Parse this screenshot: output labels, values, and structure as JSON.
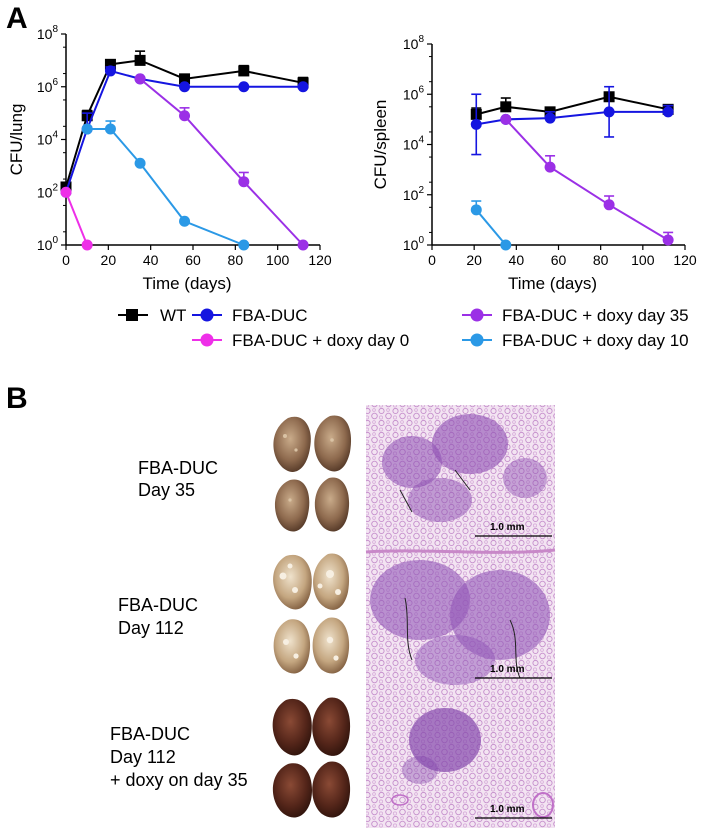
{
  "panel_a": {
    "letter": "A"
  },
  "panel_b": {
    "letter": "B",
    "rows": [
      {
        "lines": [
          "FBA-DUC",
          "Day 35"
        ],
        "scale_text": "1.0 mm"
      },
      {
        "lines": [
          "FBA-DUC",
          "Day 112"
        ],
        "scale_text": "1.0 mm"
      },
      {
        "lines": [
          "FBA-DUC",
          "Day 112",
          "+ doxy on day 35"
        ],
        "scale_text": "1.0 mm"
      }
    ]
  },
  "legend": [
    {
      "name": "WT",
      "color": "#000000",
      "marker": "square"
    },
    {
      "name": "FBA-DUC",
      "color": "#1515e0",
      "marker": "circle"
    },
    {
      "name": "FBA-DUC + doxy day 35",
      "color": "#9b30e6",
      "marker": "circle"
    },
    {
      "name": "FBA-DUC + doxy day 0",
      "color": "#ee2fe8",
      "marker": "circle"
    },
    {
      "name": "FBA-DUC + doxy day 10",
      "color": "#2b99e6",
      "marker": "circle"
    }
  ],
  "chart_data": [
    {
      "type": "line",
      "ylabel": "CFU/lung",
      "xlabel": "Time (days)",
      "xlim": [
        0,
        120
      ],
      "xticks": [
        0,
        20,
        40,
        60,
        80,
        100,
        120
      ],
      "ylim_log10": [
        0,
        8
      ],
      "yscale": "log",
      "yticks_exp": [
        0,
        2,
        4,
        6,
        8
      ],
      "series": [
        {
          "name": "WT",
          "color": "#000000",
          "marker": "square",
          "x": [
            0,
            10,
            21,
            35,
            56,
            84,
            112
          ],
          "log10_y": [
            2.2,
            4.9,
            6.85,
            7.0,
            6.3,
            6.6,
            6.15
          ],
          "err": [
            0,
            0.2,
            0.15,
            0.35,
            0.15,
            0.2,
            0.2
          ]
        },
        {
          "name": "FBA-DUC",
          "color": "#1515e0",
          "marker": "circle",
          "x": [
            0,
            10,
            21,
            35,
            56,
            84,
            112
          ],
          "log10_y": [
            2.0,
            4.4,
            6.6,
            6.3,
            6.0,
            6.0,
            6.0
          ],
          "err": [
            0,
            0.6,
            0.15,
            0,
            0,
            0,
            0
          ]
        },
        {
          "name": "FBA-DUC + doxy day 35",
          "color": "#9b30e6",
          "marker": "circle",
          "x": [
            35,
            56,
            84,
            112
          ],
          "log10_y": [
            6.3,
            4.9,
            2.4,
            0
          ],
          "err": [
            0,
            0.3,
            0.35,
            0
          ]
        },
        {
          "name": "FBA-DUC + doxy day 0",
          "color": "#ee2fe8",
          "marker": "circle",
          "x": [
            0,
            10
          ],
          "log10_y": [
            2.0,
            0
          ],
          "err": [
            0,
            0
          ]
        },
        {
          "name": "FBA-DUC + doxy day 10",
          "color": "#2b99e6",
          "marker": "circle",
          "x": [
            10,
            21,
            35,
            56,
            84
          ],
          "log10_y": [
            4.4,
            4.4,
            3.1,
            0.9,
            0
          ],
          "err": [
            0,
            0.3,
            0,
            0,
            0
          ]
        }
      ]
    },
    {
      "type": "line",
      "ylabel": "CFU/spleen",
      "xlabel": "Time (days)",
      "xlim": [
        0,
        120
      ],
      "xticks": [
        0,
        20,
        40,
        60,
        80,
        100,
        120
      ],
      "ylim_log10": [
        0,
        8
      ],
      "yscale": "log",
      "yticks_exp": [
        0,
        2,
        4,
        6,
        8
      ],
      "series": [
        {
          "name": "WT",
          "color": "#000000",
          "marker": "square",
          "x": [
            21,
            35,
            56,
            84,
            112
          ],
          "log10_y": [
            5.2,
            5.5,
            5.3,
            5.9,
            5.4
          ],
          "err": [
            0.25,
            0.35,
            0,
            0.1,
            0.15
          ]
        },
        {
          "name": "FBA-DUC",
          "color": "#1515e0",
          "marker": "circle",
          "x": [
            21,
            35,
            56,
            84,
            112
          ],
          "log10_y": [
            4.8,
            5.0,
            5.05,
            5.3,
            5.3
          ],
          "err": [
            1.2,
            0,
            0.25,
            1.0,
            0.25
          ]
        },
        {
          "name": "FBA-DUC + doxy day 35",
          "color": "#9b30e6",
          "marker": "circle",
          "x": [
            35,
            56,
            84,
            112
          ],
          "log10_y": [
            5.0,
            3.1,
            1.6,
            0.2
          ],
          "err": [
            0,
            0.45,
            0.35,
            0.3
          ]
        },
        {
          "name": "FBA-DUC + doxy day 10",
          "color": "#2b99e6",
          "marker": "circle",
          "x": [
            21,
            35
          ],
          "log10_y": [
            1.4,
            0
          ],
          "err": [
            0.35,
            0
          ]
        }
      ]
    }
  ]
}
